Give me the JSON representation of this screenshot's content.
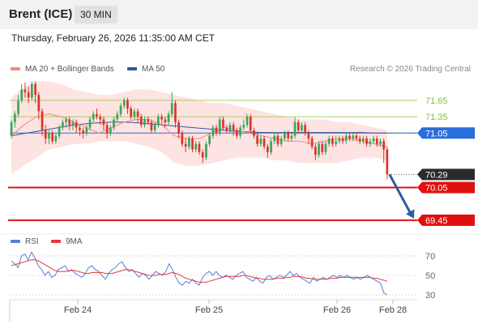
{
  "header": {
    "title": "Brent (ICE)",
    "timeframe": "30 MIN",
    "datetime": "Thursday, February 26, 2026 11:35:00 AM CET"
  },
  "legend": {
    "main": [
      {
        "label": "MA 20 + Bollinger Bands",
        "color": "#f08a80"
      },
      {
        "label": "MA 50",
        "color": "#2f5a9e"
      }
    ],
    "indicator": [
      {
        "label": "RSI",
        "color": "#5b7fd6"
      },
      {
        "label": "9MA",
        "color": "#e53935"
      }
    ],
    "credit": "Research © 2026 Trading Central"
  },
  "colors": {
    "up": "#3aa65a",
    "down": "#d9362b",
    "band_fill": "#fde3e1",
    "ma20": "#f08a80",
    "ma50": "#2f5a9e",
    "resistance": "#a8d06a",
    "pivot": "#2a6edc",
    "support": "#e01010",
    "current": "#2b2b2b",
    "arrow": "#2e5aa0",
    "rsi": "#5b7fd6",
    "rsi_ma": "#e53935"
  },
  "chart_data": [
    {
      "type": "candlestick",
      "title": "Brent (ICE)",
      "timeframe": "30 MIN",
      "x_tick_labels": [
        "Feb 24",
        "Feb 25",
        "Feb 26",
        "Feb 28"
      ],
      "ylim": [
        69.3,
        72.05
      ],
      "legend_placement": "top-left",
      "levels": [
        {
          "value": 71.65,
          "label": "71.65",
          "kind": "resistance"
        },
        {
          "value": 71.35,
          "label": "71.35",
          "kind": "resistance"
        },
        {
          "value": 71.05,
          "label": "71.05",
          "kind": "pivot"
        },
        {
          "value": 70.29,
          "label": "70.29",
          "kind": "current"
        },
        {
          "value": 70.05,
          "label": "70.05",
          "kind": "support"
        },
        {
          "value": 69.45,
          "label": "69.45",
          "kind": "support"
        }
      ],
      "projection": {
        "from": 70.29,
        "to": 69.45,
        "direction": "down"
      },
      "ma50": [
        71.0,
        71.04,
        71.08,
        71.12,
        71.16,
        71.2,
        71.22,
        71.24,
        71.25,
        71.25,
        71.24,
        71.22,
        71.2,
        71.18,
        71.16,
        71.14,
        71.12,
        71.1,
        71.08,
        71.07,
        71.06,
        71.06,
        71.06,
        71.06,
        71.06,
        71.06,
        71.06,
        71.06,
        71.06,
        71.05,
        71.05
      ],
      "ma20": [
        71.0,
        71.2,
        71.35,
        71.4,
        71.35,
        71.25,
        71.15,
        71.05,
        71.15,
        71.25,
        71.3,
        71.3,
        71.2,
        71.0,
        70.95,
        70.95,
        71.05,
        71.15,
        71.1,
        71.05,
        71.0,
        70.95,
        70.9,
        70.9,
        70.85,
        70.9,
        70.95,
        70.95,
        70.9,
        70.85,
        70.8
      ],
      "bb_upper": [
        71.7,
        71.9,
        72.0,
        72.0,
        71.95,
        71.85,
        71.8,
        71.75,
        71.75,
        71.8,
        71.85,
        71.85,
        71.8,
        71.75,
        71.7,
        71.65,
        71.6,
        71.6,
        71.55,
        71.5,
        71.45,
        71.4,
        71.35,
        71.3,
        71.3,
        71.3,
        71.25,
        71.25,
        71.2,
        71.15,
        71.1
      ],
      "bb_lower": [
        70.3,
        70.45,
        70.6,
        70.75,
        70.8,
        70.85,
        70.85,
        70.9,
        70.9,
        70.9,
        70.85,
        70.8,
        70.7,
        70.5,
        70.45,
        70.45,
        70.5,
        70.55,
        70.6,
        70.6,
        70.6,
        70.55,
        70.55,
        70.5,
        70.5,
        70.5,
        70.5,
        70.55,
        70.6,
        70.6,
        70.55
      ],
      "candles": [
        [
          71.0,
          71.25,
          71.3,
          70.95
        ],
        [
          71.25,
          71.4,
          71.45,
          71.15
        ],
        [
          71.4,
          71.65,
          71.75,
          71.35
        ],
        [
          71.65,
          71.85,
          71.95,
          71.6
        ],
        [
          71.85,
          71.8,
          71.98,
          71.7
        ],
        [
          71.8,
          71.7,
          71.9,
          71.6
        ],
        [
          71.7,
          71.95,
          72.0,
          71.65
        ],
        [
          71.95,
          71.75,
          72.0,
          71.6
        ],
        [
          71.75,
          71.45,
          71.8,
          71.3
        ],
        [
          71.45,
          71.1,
          71.5,
          71.0
        ],
        [
          71.1,
          70.95,
          71.2,
          70.85
        ],
        [
          70.95,
          71.05,
          71.1,
          70.85
        ],
        [
          71.05,
          70.9,
          71.1,
          70.85
        ],
        [
          70.9,
          71.0,
          71.05,
          70.85
        ],
        [
          71.0,
          71.15,
          71.2,
          70.95
        ],
        [
          71.15,
          71.25,
          71.3,
          71.1
        ],
        [
          71.25,
          71.3,
          71.35,
          71.15
        ],
        [
          71.3,
          71.2,
          71.35,
          71.1
        ],
        [
          71.2,
          71.25,
          71.3,
          71.1
        ],
        [
          71.25,
          71.15,
          71.3,
          71.05
        ],
        [
          71.15,
          71.1,
          71.2,
          71.0
        ],
        [
          71.1,
          71.05,
          71.15,
          70.95
        ],
        [
          71.05,
          71.15,
          71.2,
          71.0
        ],
        [
          71.15,
          71.3,
          71.35,
          71.1
        ],
        [
          71.3,
          71.4,
          71.45,
          71.25
        ],
        [
          71.4,
          71.35,
          71.5,
          71.3
        ],
        [
          71.35,
          71.3,
          71.4,
          71.2
        ],
        [
          71.3,
          71.2,
          71.35,
          71.1
        ],
        [
          71.2,
          71.05,
          71.25,
          70.95
        ],
        [
          71.05,
          71.15,
          71.2,
          71.0
        ],
        [
          71.15,
          71.3,
          71.35,
          71.1
        ],
        [
          71.3,
          71.4,
          71.45,
          71.25
        ],
        [
          71.4,
          71.55,
          71.6,
          71.35
        ],
        [
          71.55,
          71.65,
          71.7,
          71.5
        ],
        [
          71.65,
          71.5,
          71.7,
          71.4
        ],
        [
          71.5,
          71.35,
          71.55,
          71.3
        ],
        [
          71.35,
          71.45,
          71.5,
          71.3
        ],
        [
          71.45,
          71.35,
          71.5,
          71.25
        ],
        [
          71.35,
          71.2,
          71.4,
          71.15
        ],
        [
          71.2,
          71.3,
          71.35,
          71.15
        ],
        [
          71.3,
          71.25,
          71.35,
          71.2
        ],
        [
          71.25,
          71.1,
          71.3,
          71.05
        ],
        [
          71.1,
          71.2,
          71.25,
          71.05
        ],
        [
          71.2,
          71.35,
          71.4,
          71.15
        ],
        [
          71.35,
          71.3,
          71.4,
          71.2
        ],
        [
          71.3,
          71.25,
          71.35,
          71.15
        ],
        [
          71.25,
          71.4,
          71.45,
          71.2
        ],
        [
          71.4,
          71.6,
          71.8,
          71.35
        ],
        [
          71.6,
          71.25,
          71.65,
          71.15
        ],
        [
          71.25,
          71.05,
          71.3,
          70.95
        ],
        [
          71.05,
          70.85,
          71.1,
          70.8
        ],
        [
          70.85,
          70.8,
          70.95,
          70.7
        ],
        [
          70.8,
          70.95,
          71.0,
          70.75
        ],
        [
          70.95,
          70.75,
          71.0,
          70.7
        ],
        [
          70.75,
          70.85,
          70.9,
          70.7
        ],
        [
          70.85,
          70.7,
          70.9,
          70.65
        ],
        [
          70.7,
          70.6,
          70.75,
          70.5
        ],
        [
          70.6,
          70.85,
          70.9,
          70.55
        ],
        [
          70.85,
          71.0,
          71.05,
          70.8
        ],
        [
          71.0,
          71.15,
          71.2,
          70.95
        ],
        [
          71.15,
          71.05,
          71.2,
          71.0
        ],
        [
          71.05,
          71.3,
          71.35,
          71.0
        ],
        [
          71.3,
          71.15,
          71.35,
          71.1
        ],
        [
          71.15,
          71.1,
          71.2,
          71.05
        ],
        [
          71.1,
          71.2,
          71.25,
          71.05
        ],
        [
          71.2,
          71.1,
          71.25,
          71.0
        ],
        [
          71.1,
          71.0,
          71.15,
          70.95
        ],
        [
          71.0,
          71.15,
          71.2,
          70.95
        ],
        [
          71.15,
          71.2,
          71.3,
          71.1
        ],
        [
          71.2,
          71.35,
          71.4,
          71.15
        ],
        [
          71.35,
          71.1,
          71.4,
          71.05
        ],
        [
          71.1,
          71.0,
          71.15,
          70.95
        ],
        [
          71.0,
          70.85,
          71.05,
          70.8
        ],
        [
          70.85,
          70.95,
          71.0,
          70.8
        ],
        [
          70.95,
          70.8,
          71.0,
          70.75
        ],
        [
          70.8,
          70.7,
          70.85,
          70.6
        ],
        [
          70.7,
          70.9,
          70.95,
          70.65
        ],
        [
          70.9,
          71.0,
          71.05,
          70.85
        ],
        [
          71.0,
          70.85,
          71.05,
          70.8
        ],
        [
          70.85,
          70.95,
          71.0,
          70.8
        ],
        [
          70.95,
          71.05,
          71.1,
          70.9
        ],
        [
          71.05,
          70.95,
          71.1,
          70.9
        ],
        [
          70.95,
          71.0,
          71.05,
          70.9
        ],
        [
          71.0,
          71.25,
          71.35,
          70.95
        ],
        [
          71.25,
          71.1,
          71.3,
          71.05
        ],
        [
          71.1,
          71.2,
          71.25,
          71.05
        ],
        [
          71.2,
          71.05,
          71.25,
          71.0
        ],
        [
          71.05,
          70.95,
          71.1,
          70.85
        ],
        [
          70.95,
          70.8,
          71.0,
          70.75
        ],
        [
          70.8,
          70.65,
          70.85,
          70.55
        ],
        [
          70.65,
          70.85,
          70.9,
          70.6
        ],
        [
          70.85,
          70.7,
          70.9,
          70.65
        ],
        [
          70.7,
          70.85,
          70.9,
          70.65
        ],
        [
          70.85,
          70.95,
          71.0,
          70.8
        ],
        [
          70.95,
          70.85,
          71.0,
          70.8
        ],
        [
          70.85,
          70.9,
          71.0,
          70.8
        ],
        [
          70.9,
          70.95,
          71.0,
          70.85
        ],
        [
          70.95,
          70.9,
          71.0,
          70.85
        ],
        [
          70.9,
          71.0,
          71.05,
          70.85
        ],
        [
          71.0,
          70.95,
          71.05,
          70.9
        ],
        [
          70.95,
          71.0,
          71.05,
          70.9
        ],
        [
          71.0,
          70.95,
          71.05,
          70.9
        ],
        [
          70.95,
          70.9,
          71.0,
          70.85
        ],
        [
          70.9,
          70.95,
          71.0,
          70.85
        ],
        [
          70.95,
          70.85,
          71.0,
          70.8
        ],
        [
          70.85,
          70.9,
          70.95,
          70.8
        ],
        [
          70.9,
          70.95,
          71.0,
          70.85
        ],
        [
          70.95,
          70.85,
          71.0,
          70.8
        ],
        [
          70.85,
          70.9,
          70.95,
          70.8
        ],
        [
          70.9,
          70.75,
          70.95,
          70.5
        ],
        [
          70.75,
          70.29,
          70.8,
          70.2
        ]
      ]
    },
    {
      "type": "line",
      "title": "RSI",
      "y_ticks": [
        70,
        50,
        30
      ],
      "ylim": [
        25,
        80
      ],
      "series": [
        {
          "name": "RSI",
          "values": [
            65,
            62,
            58,
            70,
            72,
            66,
            74,
            68,
            60,
            56,
            50,
            54,
            48,
            50,
            56,
            58,
            60,
            54,
            56,
            52,
            50,
            48,
            52,
            58,
            60,
            56,
            54,
            50,
            46,
            52,
            56,
            58,
            62,
            64,
            58,
            54,
            56,
            52,
            48,
            52,
            50,
            46,
            50,
            54,
            52,
            50,
            54,
            62,
            56,
            48,
            42,
            40,
            44,
            42,
            46,
            42,
            40,
            48,
            52,
            54,
            50,
            54,
            50,
            48,
            50,
            48,
            46,
            50,
            52,
            54,
            48,
            46,
            44,
            48,
            44,
            42,
            48,
            50,
            46,
            48,
            50,
            48,
            50,
            54,
            50,
            52,
            48,
            46,
            44,
            42,
            48,
            44,
            46,
            48,
            46,
            48,
            50,
            48,
            50,
            48,
            50,
            48,
            46,
            48,
            46,
            48,
            50,
            48,
            46,
            44,
            42,
            32,
            30
          ]
        },
        {
          "name": "9MA",
          "values": [
            60,
            61,
            62,
            63,
            64,
            65,
            66,
            66,
            65,
            63,
            61,
            59,
            57,
            55,
            54,
            54,
            54,
            55,
            55,
            55,
            54,
            53,
            52,
            52,
            53,
            53,
            53,
            53,
            52,
            52,
            52,
            53,
            54,
            55,
            56,
            56,
            55,
            54,
            53,
            52,
            51,
            50,
            50,
            50,
            51,
            51,
            51,
            52,
            53,
            52,
            51,
            49,
            47,
            46,
            45,
            44,
            43,
            43,
            43,
            44,
            45,
            46,
            47,
            48,
            49,
            49,
            49,
            49,
            49,
            50,
            50,
            49,
            48,
            47,
            47,
            46,
            46,
            46,
            46,
            47,
            47,
            47,
            48,
            48,
            49,
            49,
            49,
            48,
            47,
            47,
            46,
            46,
            46,
            46,
            46,
            47,
            47,
            47,
            48,
            48,
            48,
            48,
            48,
            48,
            48,
            48,
            48,
            48,
            47,
            47,
            46,
            45,
            44
          ]
        }
      ]
    }
  ]
}
